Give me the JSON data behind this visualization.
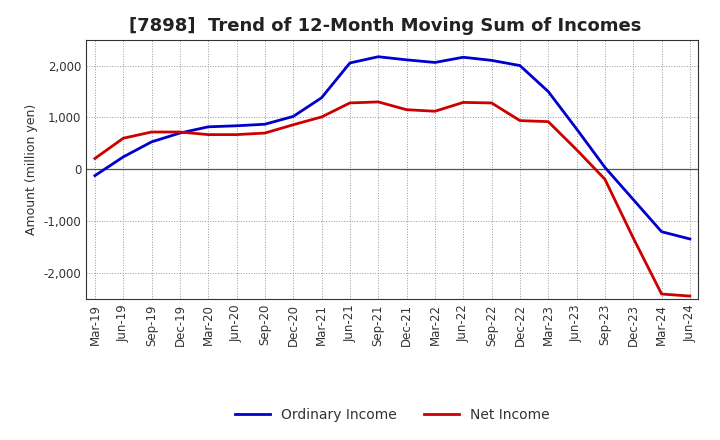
{
  "title": "[7898]  Trend of 12-Month Moving Sum of Incomes",
  "ylabel": "Amount (million yen)",
  "background_color": "#ffffff",
  "plot_bg_color": "#ffffff",
  "grid_color": "#999999",
  "x_labels": [
    "Mar-19",
    "Jun-19",
    "Sep-19",
    "Dec-19",
    "Mar-20",
    "Jun-20",
    "Sep-20",
    "Dec-20",
    "Mar-21",
    "Jun-21",
    "Sep-21",
    "Dec-21",
    "Mar-22",
    "Jun-22",
    "Sep-22",
    "Dec-22",
    "Mar-23",
    "Jun-23",
    "Sep-23",
    "Dec-23",
    "Mar-24",
    "Jun-24"
  ],
  "ordinary_income": [
    -120,
    240,
    530,
    700,
    820,
    840,
    870,
    1020,
    1380,
    2050,
    2170,
    2110,
    2060,
    2160,
    2100,
    2000,
    1500,
    780,
    40,
    -580,
    -1200,
    -1340
  ],
  "net_income": [
    210,
    600,
    720,
    720,
    670,
    670,
    700,
    860,
    1010,
    1280,
    1300,
    1150,
    1120,
    1290,
    1280,
    940,
    920,
    380,
    -190,
    -1320,
    -2400,
    -2440
  ],
  "ordinary_color": "#0000cc",
  "net_color": "#cc0000",
  "ylim": [
    -2500,
    2500
  ],
  "yticks": [
    -2000,
    -1000,
    0,
    1000,
    2000
  ],
  "line_width": 2.0,
  "title_fontsize": 13,
  "legend_fontsize": 10,
  "tick_fontsize": 8.5,
  "ylabel_fontsize": 9
}
